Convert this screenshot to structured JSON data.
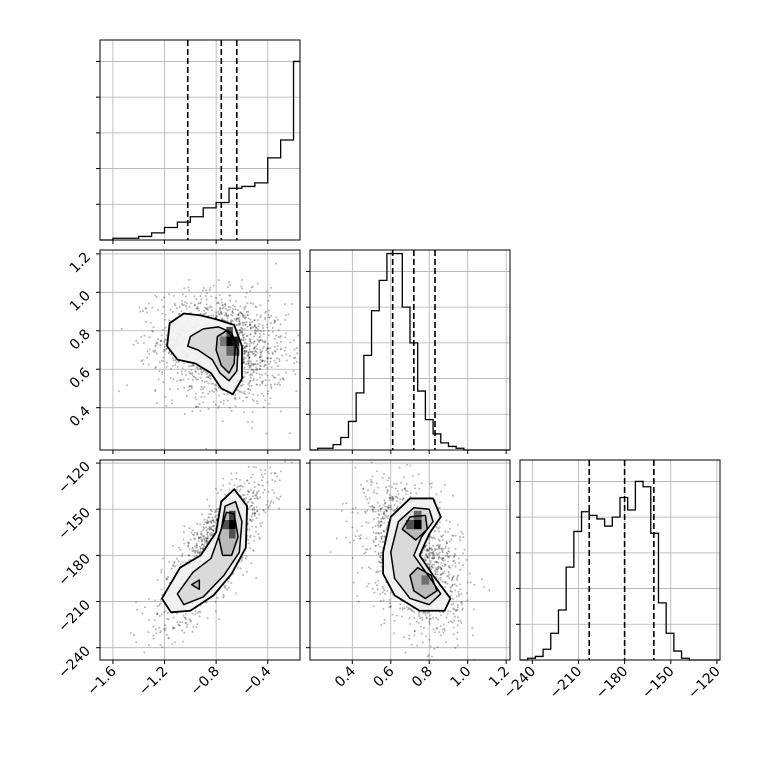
{
  "chart_data": {
    "type": "corner",
    "grid": true,
    "parameters": [
      {
        "xlim": [
          -1.7,
          -0.15
        ],
        "ticks": [
          -1.6,
          -1.2,
          -0.8,
          -0.4
        ],
        "tick_labels": [
          "−1.6",
          "−1.2",
          "−0.8",
          "−0.4"
        ],
        "quantiles": [
          -1.02,
          -0.76,
          -0.64
        ]
      },
      {
        "xlim": [
          0.18,
          1.22
        ],
        "ticks": [
          0.4,
          0.6,
          0.8,
          1.0,
          1.2
        ],
        "tick_labels": [
          "0.4",
          "0.6",
          "0.8",
          "1.0",
          "1.2"
        ],
        "quantiles": [
          0.61,
          0.72,
          0.83
        ]
      },
      {
        "xlim": [
          -248,
          -118
        ],
        "ticks": [
          -240,
          -210,
          -180,
          -150,
          -120
        ],
        "tick_labels": [
          "−240",
          "−210",
          "−180",
          "−150",
          "−120"
        ],
        "quantiles": [
          -203,
          -180,
          -161
        ]
      }
    ],
    "histograms": [
      {
        "start": -1.7,
        "width": 0.1,
        "counts": [
          0,
          0.01,
          0.01,
          0.02,
          0.04,
          0.07,
          0.1,
          0.13,
          0.18,
          0.21,
          0.29,
          0.3,
          0.32,
          0.46,
          0.56,
          1.0,
          1.04,
          1.07,
          0.92,
          0.3,
          0.11,
          0.02,
          0.01,
          0.01,
          0,
          0,
          0,
          0,
          0,
          0,
          0
        ],
        "dummy": null
      },
      {
        "start": 0.18,
        "width": 0.04,
        "counts": [
          0,
          0.01,
          0.01,
          0.03,
          0.07,
          0.16,
          0.32,
          0.53,
          0.78,
          0.95,
          1.1,
          1.1,
          0.8,
          0.6,
          0.33,
          0.17,
          0.09,
          0.04,
          0.02,
          0.01,
          0,
          0,
          0,
          0,
          0,
          0
        ],
        "dummy": null
      },
      {
        "start": -248,
        "width": 5,
        "counts": [
          0,
          0.01,
          0.02,
          0.06,
          0.15,
          0.28,
          0.52,
          0.72,
          0.83,
          0.81,
          0.79,
          0.75,
          0.8,
          0.91,
          0.84,
          1.0,
          0.97,
          0.71,
          0.32,
          0.15,
          0.05,
          0.01,
          0,
          0,
          0,
          0
        ],
        "dummy": null
      }
    ],
    "pair_panels": [
      {
        "x_param": 0,
        "y_param": 1,
        "ylim": [
          0.18,
          1.22
        ],
        "yticks": [
          0.4,
          0.6,
          0.8,
          1.0,
          1.2
        ],
        "ytick_labels": [
          "0.4",
          "0.6",
          "0.8",
          "1.0",
          "1.2"
        ],
        "cloud": {
          "cx": -0.75,
          "cy": 0.71,
          "sx": 0.25,
          "sy": 0.14,
          "rho": -0.15,
          "n": 1600
        },
        "contours": [
          [
            [
              -1.16,
              0.84
            ],
            [
              -1.05,
              0.89
            ],
            [
              -0.92,
              0.88
            ],
            [
              -0.8,
              0.86
            ],
            [
              -0.66,
              0.83
            ],
            [
              -0.6,
              0.72
            ],
            [
              -0.6,
              0.55
            ],
            [
              -0.67,
              0.47
            ],
            [
              -0.76,
              0.5
            ],
            [
              -0.84,
              0.58
            ],
            [
              -0.96,
              0.63
            ],
            [
              -1.1,
              0.65
            ],
            [
              -1.18,
              0.72
            ]
          ],
          [
            [
              -1.0,
              0.77
            ],
            [
              -0.9,
              0.81
            ],
            [
              -0.78,
              0.82
            ],
            [
              -0.68,
              0.79
            ],
            [
              -0.63,
              0.7
            ],
            [
              -0.64,
              0.59
            ],
            [
              -0.7,
              0.54
            ],
            [
              -0.77,
              0.58
            ],
            [
              -0.83,
              0.65
            ],
            [
              -0.94,
              0.7
            ],
            [
              -1.02,
              0.72
            ]
          ],
          [
            [
              -0.79,
              0.77
            ],
            [
              -0.72,
              0.8
            ],
            [
              -0.65,
              0.75
            ],
            [
              -0.66,
              0.63
            ],
            [
              -0.7,
              0.58
            ],
            [
              -0.76,
              0.62
            ],
            [
              -0.8,
              0.7
            ]
          ]
        ],
        "dense_cells": [
          {
            "x": -0.72,
            "y": 0.72,
            "w": 0.05,
            "h": 0.05,
            "level": 1.0
          },
          {
            "x": -0.67,
            "y": 0.72,
            "w": 0.05,
            "h": 0.05,
            "level": 0.85
          },
          {
            "x": -0.72,
            "y": 0.77,
            "w": 0.05,
            "h": 0.05,
            "level": 0.6
          },
          {
            "x": -0.67,
            "y": 0.67,
            "w": 0.05,
            "h": 0.05,
            "level": 0.6
          },
          {
            "x": -0.72,
            "y": 0.67,
            "w": 0.05,
            "h": 0.05,
            "level": 0.5
          },
          {
            "x": -0.77,
            "y": 0.72,
            "w": 0.05,
            "h": 0.05,
            "level": 0.4
          }
        ]
      },
      {
        "x_param": 0,
        "y_param": 2,
        "ylim": [
          -248,
          -118
        ],
        "yticks": [
          -240,
          -210,
          -180,
          -150,
          -120
        ],
        "ytick_labels": [
          "−240",
          "−210",
          "−180",
          "−150",
          "−120"
        ],
        "cloud": {
          "cx": -0.82,
          "cy": -178,
          "sx": 0.2,
          "sy": 23,
          "rho": 0.8,
          "n": 1600
        },
        "contours": [
          [
            [
              -1.22,
              -208
            ],
            [
              -1.08,
              -188
            ],
            [
              -0.92,
              -180
            ],
            [
              -0.8,
              -165
            ],
            [
              -0.76,
              -145
            ],
            [
              -0.66,
              -137
            ],
            [
              -0.56,
              -148
            ],
            [
              -0.57,
              -175
            ],
            [
              -0.68,
              -192
            ],
            [
              -0.82,
              -206
            ],
            [
              -1.0,
              -216
            ],
            [
              -1.15,
              -217
            ]
          ],
          [
            [
              -1.1,
              -205
            ],
            [
              -0.98,
              -191
            ],
            [
              -0.84,
              -182
            ],
            [
              -0.76,
              -163
            ],
            [
              -0.73,
              -148
            ],
            [
              -0.65,
              -145
            ],
            [
              -0.6,
              -158
            ],
            [
              -0.62,
              -178
            ],
            [
              -0.74,
              -193
            ],
            [
              -0.9,
              -207
            ],
            [
              -1.05,
              -212
            ]
          ],
          [
            [
              -0.78,
              -168
            ],
            [
              -0.72,
              -152
            ],
            [
              -0.66,
              -153
            ],
            [
              -0.63,
              -168
            ],
            [
              -0.68,
              -180
            ],
            [
              -0.75,
              -180
            ]
          ],
          [
            [
              -0.99,
              -199
            ],
            [
              -0.93,
              -196
            ],
            [
              -0.93,
              -202
            ]
          ]
        ],
        "dense_cells": [
          {
            "x": -0.7,
            "y": -163,
            "w": 0.05,
            "h": 6,
            "level": 1.0
          },
          {
            "x": -0.7,
            "y": -157,
            "w": 0.05,
            "h": 6,
            "level": 0.7
          },
          {
            "x": -0.75,
            "y": -163,
            "w": 0.05,
            "h": 6,
            "level": 0.6
          },
          {
            "x": -0.7,
            "y": -169,
            "w": 0.05,
            "h": 6,
            "level": 0.6
          }
        ]
      },
      {
        "x_param": 1,
        "y_param": 2,
        "ylim": [
          -248,
          -118
        ],
        "yticks": [
          -240,
          -210,
          -180,
          -150,
          -120
        ],
        "ytick_labels": [
          "−240",
          "−210",
          "−180",
          "−150",
          "−120"
        ],
        "cloud": {
          "cx": 0.72,
          "cy": -180,
          "sx": 0.12,
          "sy": 23,
          "rho": -0.4,
          "n": 1600
        },
        "contours": [
          [
            [
              0.56,
              -178
            ],
            [
              0.6,
              -155
            ],
            [
              0.7,
              -143
            ],
            [
              0.82,
              -143
            ],
            [
              0.86,
              -155
            ],
            [
              0.8,
              -166
            ],
            [
              0.75,
              -180
            ],
            [
              0.82,
              -193
            ],
            [
              0.91,
              -208
            ],
            [
              0.88,
              -216
            ],
            [
              0.75,
              -216
            ],
            [
              0.62,
              -206
            ],
            [
              0.56,
              -192
            ]
          ],
          [
            [
              0.6,
              -178
            ],
            [
              0.64,
              -158
            ],
            [
              0.72,
              -149
            ],
            [
              0.8,
              -150
            ],
            [
              0.82,
              -158
            ],
            [
              0.76,
              -168
            ],
            [
              0.72,
              -180
            ],
            [
              0.8,
              -194
            ],
            [
              0.86,
              -205
            ],
            [
              0.8,
              -212
            ],
            [
              0.7,
              -208
            ],
            [
              0.62,
              -195
            ]
          ],
          [
            [
              0.66,
              -163
            ],
            [
              0.7,
              -155
            ],
            [
              0.78,
              -154
            ],
            [
              0.79,
              -163
            ],
            [
              0.73,
              -170
            ]
          ],
          [
            [
              0.7,
              -193
            ],
            [
              0.74,
              -188
            ],
            [
              0.81,
              -193
            ],
            [
              0.84,
              -203
            ],
            [
              0.78,
              -208
            ],
            [
              0.72,
              -203
            ]
          ]
        ],
        "dense_cells": [
          {
            "x": 0.72,
            "y": -163,
            "w": 0.04,
            "h": 6,
            "level": 1.0
          },
          {
            "x": 0.68,
            "y": -163,
            "w": 0.04,
            "h": 6,
            "level": 0.6
          },
          {
            "x": 0.72,
            "y": -157,
            "w": 0.04,
            "h": 6,
            "level": 0.5
          },
          {
            "x": 0.76,
            "y": -199,
            "w": 0.04,
            "h": 6,
            "level": 0.45
          }
        ]
      }
    ]
  }
}
